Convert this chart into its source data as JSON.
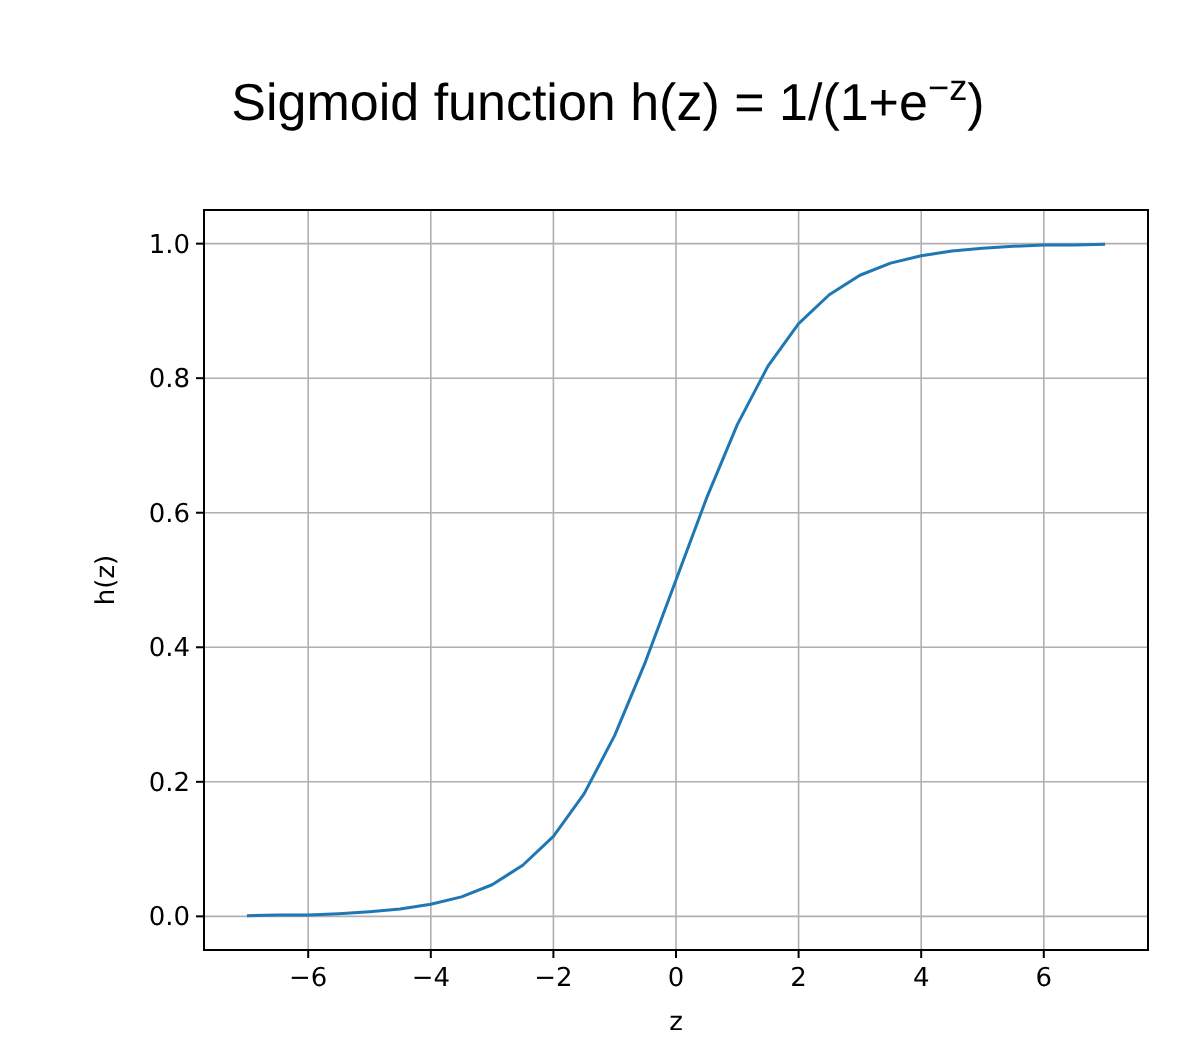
{
  "chart_data": {
    "type": "line",
    "title": "Sigmoid function  h(z) = 1/(1+e$^{−z}$)",
    "xlabel": "z",
    "ylabel": "h(z)",
    "xlim": [
      -7.7,
      7.7
    ],
    "ylim": [
      -0.05,
      1.05
    ],
    "xticks": [
      {
        "value": -6,
        "label": "−6"
      },
      {
        "value": -4,
        "label": "−4"
      },
      {
        "value": -2,
        "label": "−2"
      },
      0,
      2,
      4,
      6
    ],
    "yticks": [
      {
        "value": 0,
        "label": "0.0"
      },
      {
        "value": 0.2,
        "label": "0.2"
      },
      {
        "value": 0.4,
        "label": "0.4"
      },
      {
        "value": 0.6,
        "label": "0.6"
      },
      {
        "value": 0.8,
        "label": "0.8"
      },
      {
        "value": 1,
        "label": "1.0"
      }
    ],
    "grid": true,
    "x": [
      -7,
      -6.5,
      -6,
      -5.5,
      -5,
      -4.5,
      -4,
      -3.5,
      -3,
      -2.5,
      -2,
      -1.5,
      -1,
      -0.5,
      0,
      0.5,
      1,
      1.5,
      2,
      2.5,
      3,
      3.5,
      4,
      4.5,
      5,
      5.5,
      6,
      6.5,
      7
    ],
    "series": [
      {
        "color": "#1f77b4",
        "values": [
          0.001,
          0.002,
          0.002,
          0.004,
          0.007,
          0.011,
          0.018,
          0.029,
          0.047,
          0.076,
          0.119,
          0.182,
          0.269,
          0.378,
          0.5,
          0.622,
          0.731,
          0.818,
          0.881,
          0.924,
          0.953,
          0.971,
          0.982,
          0.989,
          0.993,
          0.996,
          0.998,
          0.998,
          0.999
        ]
      }
    ]
  }
}
